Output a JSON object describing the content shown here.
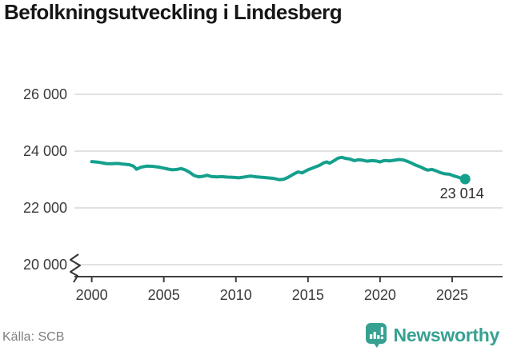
{
  "title": "Befolkningsutveckling i Lindesberg",
  "source": "Källa: SCB",
  "branding": {
    "name": "Newsworthy",
    "logo_icon": "bar-chart-speech-bubble-icon",
    "brand_color": "#37a191"
  },
  "colors": {
    "line": "#14a08d",
    "marker": "#14a08d",
    "grid": "#e1e1e1",
    "axis": "#3f3f3f",
    "tick_text": "#3a3a3a",
    "muted_text": "#7f7f7f"
  },
  "chart_data": {
    "type": "line",
    "title": "Befolkningsutveckling i Lindesberg",
    "xlabel": "",
    "ylabel": "",
    "legend": "none",
    "grid": "horizontal",
    "axis_break_at_y_min": true,
    "xlim_years": [
      1998.8,
      2028.5
    ],
    "ylim": [
      20000,
      26000
    ],
    "xticks": [
      2000,
      2005,
      2010,
      2015,
      2020,
      2025
    ],
    "yticks": [
      20000,
      22000,
      24000,
      26000
    ],
    "ytick_labels": [
      "20 000",
      "22 000",
      "24 000",
      "26 000"
    ],
    "last_point_label": "23 014",
    "last_point": [
      2025.9,
      23014
    ],
    "source": "Källa: SCB",
    "points": [
      [
        2000.0,
        23630
      ],
      [
        2000.4,
        23615
      ],
      [
        2000.8,
        23580
      ],
      [
        2001.0,
        23560
      ],
      [
        2001.4,
        23555
      ],
      [
        2001.8,
        23565
      ],
      [
        2002.2,
        23540
      ],
      [
        2002.6,
        23520
      ],
      [
        2002.9,
        23470
      ],
      [
        2003.1,
        23360
      ],
      [
        2003.4,
        23430
      ],
      [
        2003.8,
        23470
      ],
      [
        2004.2,
        23465
      ],
      [
        2004.6,
        23440
      ],
      [
        2005.0,
        23400
      ],
      [
        2005.3,
        23365
      ],
      [
        2005.6,
        23340
      ],
      [
        2005.9,
        23355
      ],
      [
        2006.2,
        23385
      ],
      [
        2006.5,
        23335
      ],
      [
        2006.8,
        23250
      ],
      [
        2007.1,
        23140
      ],
      [
        2007.4,
        23095
      ],
      [
        2007.7,
        23110
      ],
      [
        2008.0,
        23150
      ],
      [
        2008.3,
        23105
      ],
      [
        2008.7,
        23090
      ],
      [
        2009.0,
        23100
      ],
      [
        2009.4,
        23085
      ],
      [
        2009.8,
        23075
      ],
      [
        2010.2,
        23060
      ],
      [
        2010.6,
        23090
      ],
      [
        2011.0,
        23120
      ],
      [
        2011.4,
        23095
      ],
      [
        2011.8,
        23080
      ],
      [
        2012.2,
        23060
      ],
      [
        2012.6,
        23040
      ],
      [
        2013.0,
        22995
      ],
      [
        2013.3,
        23005
      ],
      [
        2013.6,
        23070
      ],
      [
        2014.0,
        23190
      ],
      [
        2014.3,
        23265
      ],
      [
        2014.6,
        23235
      ],
      [
        2015.0,
        23340
      ],
      [
        2015.4,
        23420
      ],
      [
        2015.8,
        23500
      ],
      [
        2016.1,
        23590
      ],
      [
        2016.3,
        23620
      ],
      [
        2016.5,
        23575
      ],
      [
        2016.8,
        23660
      ],
      [
        2017.1,
        23755
      ],
      [
        2017.35,
        23780
      ],
      [
        2017.6,
        23745
      ],
      [
        2017.9,
        23720
      ],
      [
        2018.2,
        23665
      ],
      [
        2018.5,
        23695
      ],
      [
        2018.8,
        23680
      ],
      [
        2019.1,
        23645
      ],
      [
        2019.4,
        23665
      ],
      [
        2019.7,
        23655
      ],
      [
        2020.0,
        23620
      ],
      [
        2020.3,
        23670
      ],
      [
        2020.7,
        23655
      ],
      [
        2021.0,
        23680
      ],
      [
        2021.3,
        23705
      ],
      [
        2021.6,
        23690
      ],
      [
        2021.9,
        23640
      ],
      [
        2022.2,
        23575
      ],
      [
        2022.5,
        23500
      ],
      [
        2022.8,
        23445
      ],
      [
        2023.1,
        23370
      ],
      [
        2023.3,
        23330
      ],
      [
        2023.6,
        23355
      ],
      [
        2023.9,
        23300
      ],
      [
        2024.2,
        23240
      ],
      [
        2024.5,
        23200
      ],
      [
        2024.8,
        23185
      ],
      [
        2025.1,
        23130
      ],
      [
        2025.4,
        23085
      ],
      [
        2025.65,
        23040
      ],
      [
        2025.9,
        23014
      ]
    ]
  }
}
